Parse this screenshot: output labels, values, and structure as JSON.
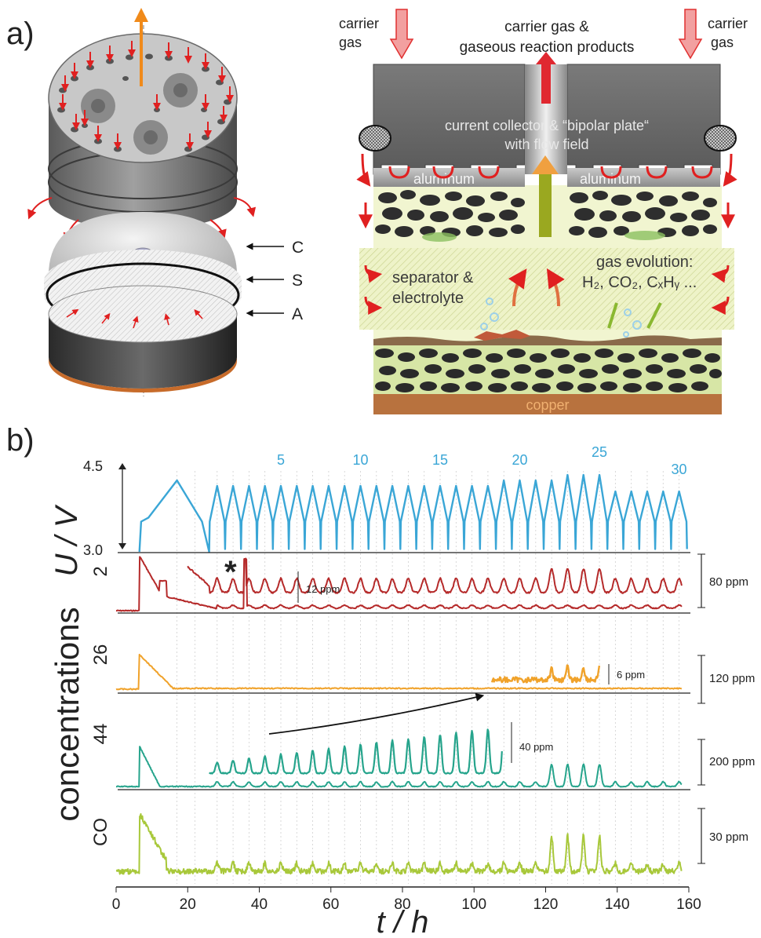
{
  "panel_a": {
    "label": "a)",
    "exploded": {
      "C": "C",
      "S": "S",
      "A": "A"
    },
    "cross": {
      "carrier_left": [
        "carrier",
        "gas"
      ],
      "carrier_right": [
        "carrier",
        "gas"
      ],
      "top_center": [
        "carrier gas &",
        "gaseous reaction products"
      ],
      "plate": [
        "current collector & “bipolar plate“",
        "with flow field"
      ],
      "aluminum": "aluminum",
      "separator": [
        "separator &",
        "electrolyte"
      ],
      "gas_evolution": "gas evolution:",
      "gases": "H₂, CO₂, CₓHᵧ ...",
      "copper": "copper"
    }
  },
  "panel_b": {
    "label": "b)",
    "u_axis": {
      "label": "U / V",
      "ticks": [
        "4.5",
        "3.0"
      ]
    },
    "cycle_labels": [
      "5",
      "10",
      "15",
      "20",
      "25",
      "30"
    ],
    "y_group_label": "concentrations",
    "traces": [
      {
        "name": "2",
        "color": "#b52a2a",
        "scale": "80 ppm",
        "inset_scale": "12 ppm",
        "marker": "*"
      },
      {
        "name": "26",
        "color": "#f0a22a",
        "scale": "120 ppm",
        "inset_scale": "6 ppm"
      },
      {
        "name": "44",
        "color": "#26a48c",
        "scale": "200 ppm",
        "inset_scale": "40 ppm"
      },
      {
        "name": "CO",
        "color": "#a8c83a",
        "scale": "30 ppm"
      }
    ],
    "x_axis": {
      "label": "t / h",
      "ticks": [
        "0",
        "20",
        "40",
        "60",
        "80",
        "100",
        "120",
        "140",
        "160"
      ]
    }
  },
  "chart_data": {
    "type": "line",
    "xlabel": "t / h",
    "xlim": [
      0,
      160
    ],
    "ylabel": "U / V",
    "ylim": [
      3.0,
      4.5
    ],
    "x_ticks": [
      0,
      20,
      40,
      60,
      80,
      100,
      120,
      140,
      160
    ],
    "cycle_annotations": [
      5,
      10,
      15,
      20,
      25,
      30
    ],
    "voltage": {
      "formation_start_h": 6.5,
      "first_charge_peak": {
        "t": 17,
        "u": 4.3
      },
      "cycle_start_h": 26,
      "cycle_period_h": 4.45,
      "cycles": 30,
      "upper_cutoff_V": [
        4.2,
        4.2,
        4.2,
        4.2,
        4.2,
        4.2,
        4.2,
        4.2,
        4.2,
        4.2,
        4.2,
        4.2,
        4.2,
        4.2,
        4.2,
        4.2,
        4.2,
        4.2,
        4.3,
        4.3,
        4.3,
        4.3,
        4.4,
        4.4,
        4.4,
        4.1,
        4.1,
        4.1,
        4.1,
        4.1
      ],
      "lower_cutoff_V": 3.0
    },
    "series": [
      {
        "name": "2",
        "scale_bar": "80 ppm",
        "inset_scale_bar": "12 ppm",
        "first_peak_t": 7,
        "spike_t": 36
      },
      {
        "name": "26",
        "scale_bar": "120 ppm",
        "inset_scale_bar": "6 ppm",
        "first_peak_t": 7
      },
      {
        "name": "44",
        "scale_bar": "200 ppm",
        "inset_scale_bar": "40 ppm",
        "first_peak_t": 7
      },
      {
        "name": "CO",
        "scale_bar": "30 ppm",
        "first_peak_t": 7
      }
    ],
    "colors": {
      "voltage": "#3aa6d6",
      "m2": "#b52a2a",
      "m26": "#f0a22a",
      "m44": "#26a48c",
      "co": "#a8c83a"
    }
  }
}
